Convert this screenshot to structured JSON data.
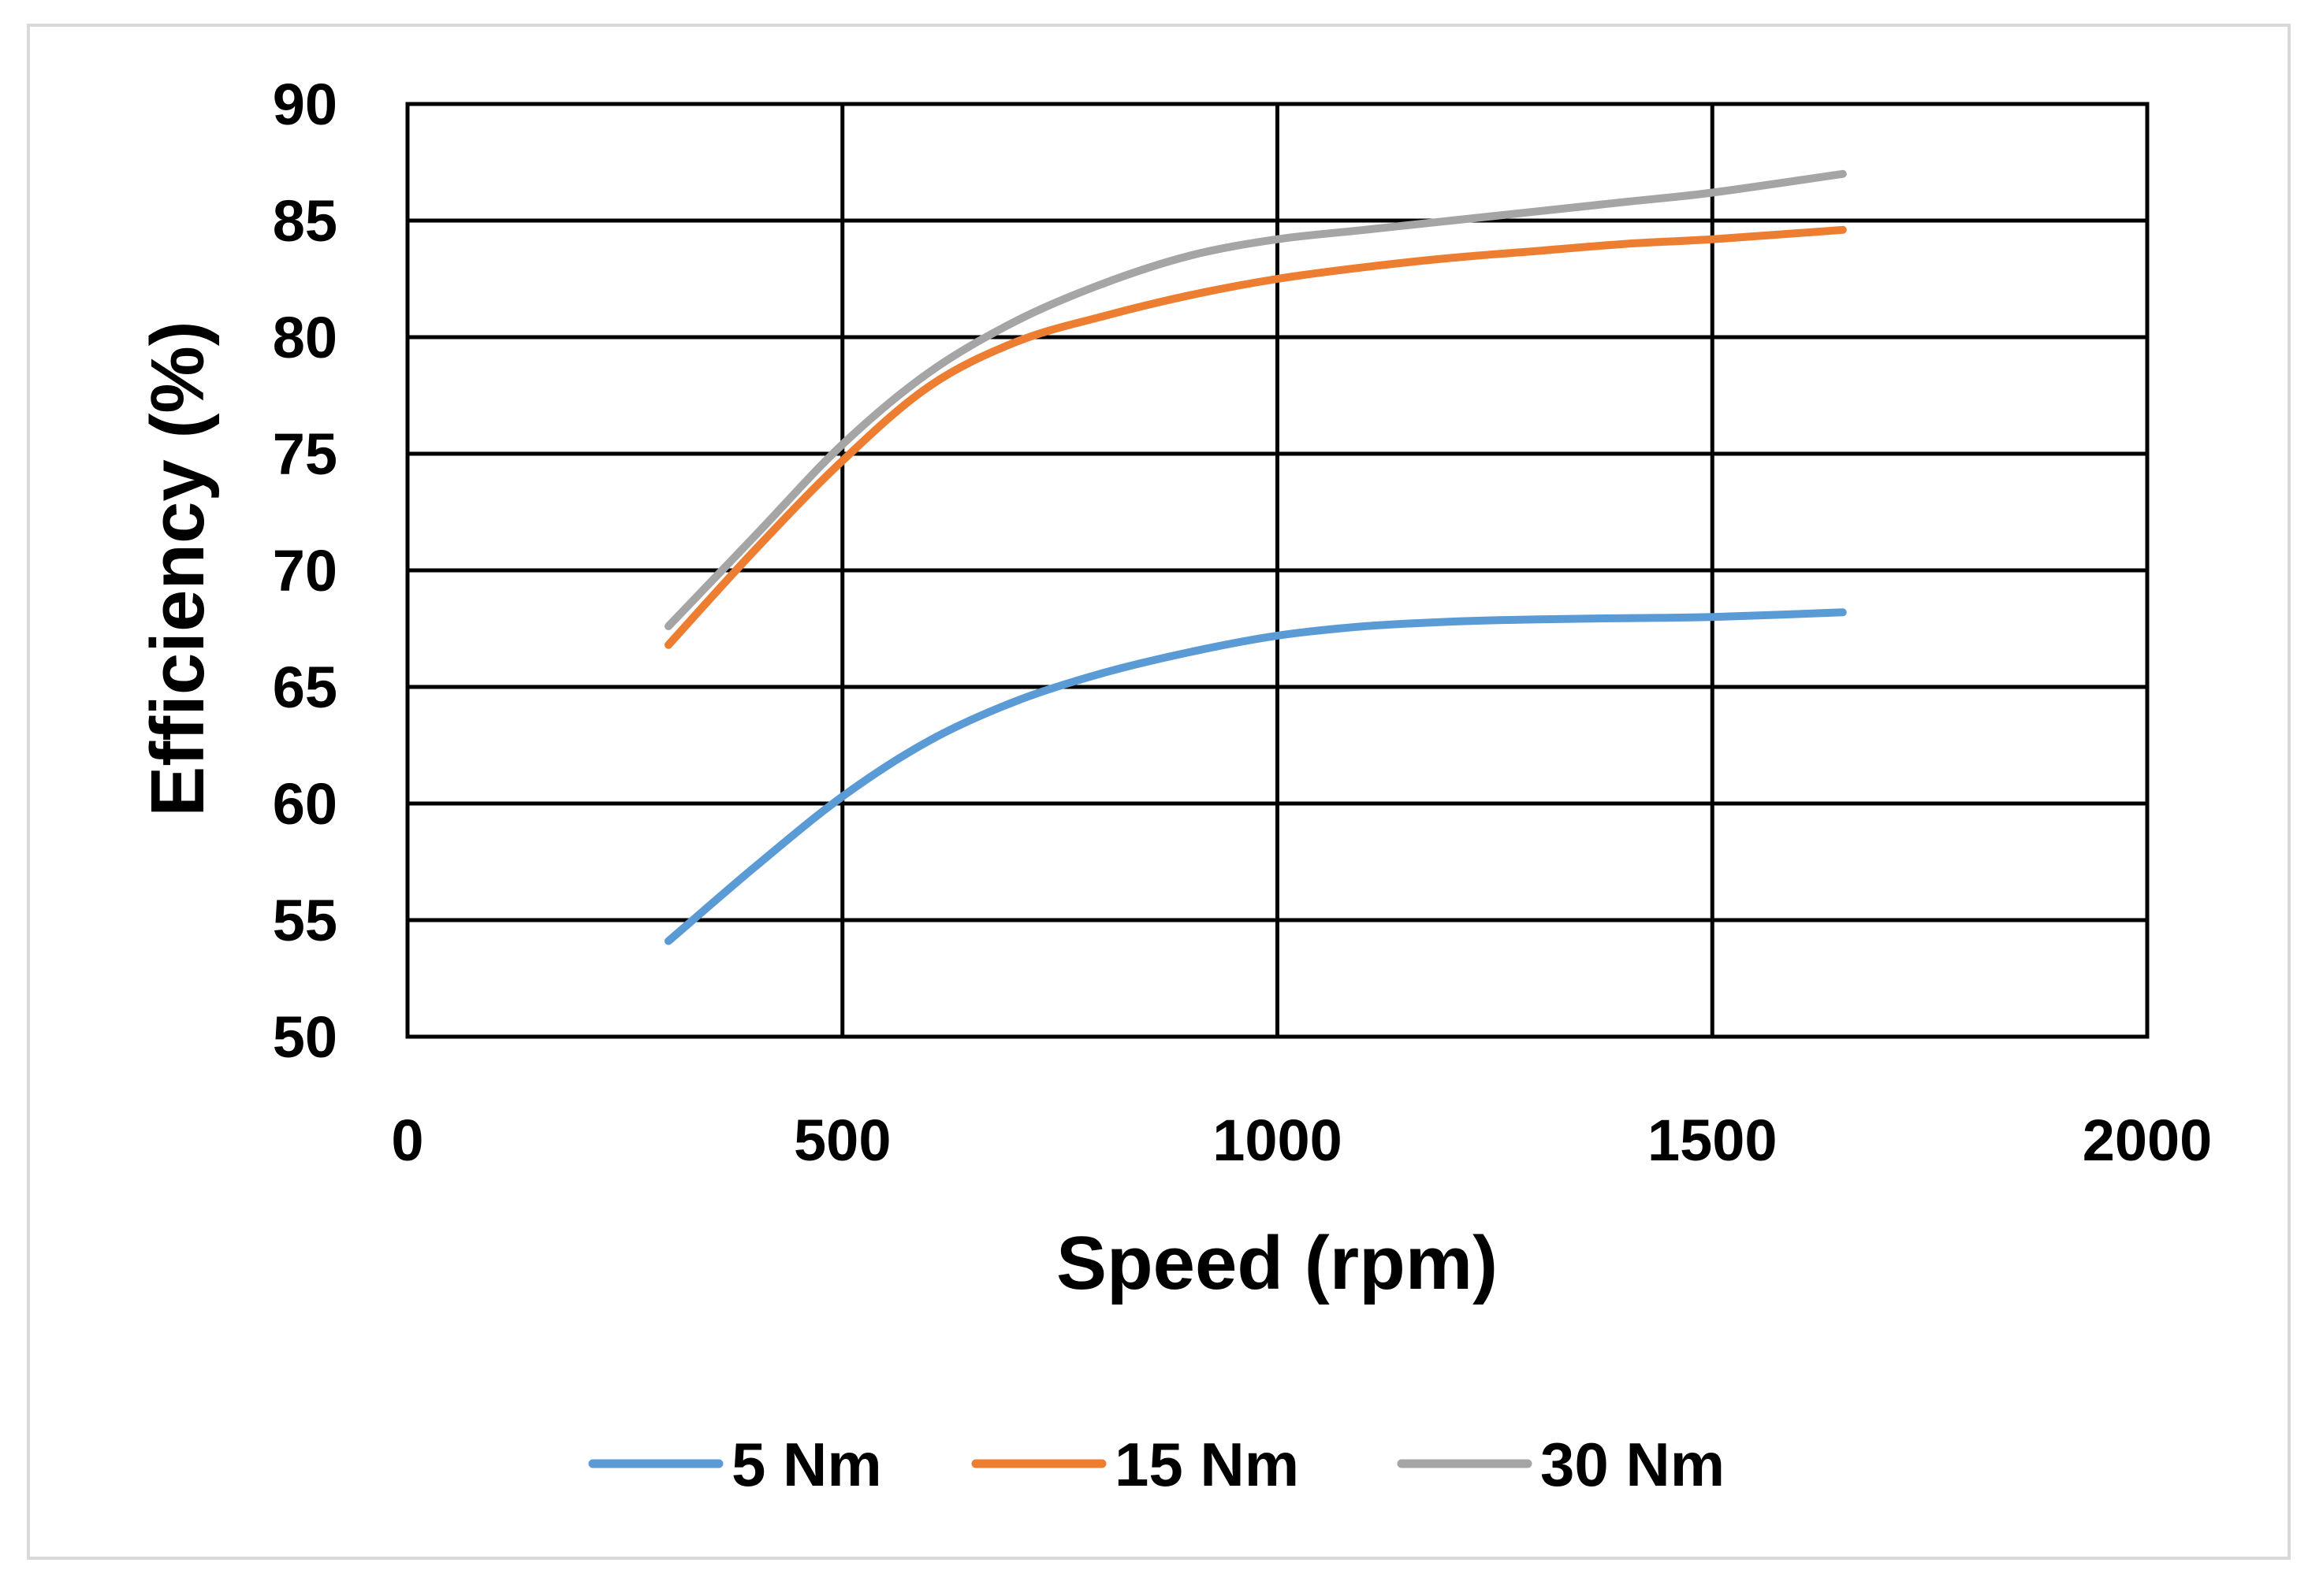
{
  "chart_data": {
    "type": "line",
    "title": "",
    "xlabel": "Speed (rpm)",
    "ylabel": "Efficiency (%)",
    "xlim": [
      0,
      2000
    ],
    "ylim": [
      50,
      90
    ],
    "xticks": [
      0,
      500,
      1000,
      1500,
      2000
    ],
    "yticks": [
      50,
      55,
      60,
      65,
      70,
      75,
      80,
      85,
      90
    ],
    "grid": true,
    "legend_position": "bottom",
    "series": [
      {
        "name": "5 Nm",
        "color": "#5b9bd5",
        "x": [
          300,
          400,
          500,
          600,
          700,
          800,
          900,
          1000,
          1100,
          1200,
          1300,
          1400,
          1500,
          1650
        ],
        "y": [
          54.1,
          57.3,
          60.3,
          62.7,
          64.4,
          65.6,
          66.5,
          67.2,
          67.6,
          67.8,
          67.9,
          67.95,
          68.0,
          68.2
        ]
      },
      {
        "name": "15 Nm",
        "color": "#ed7d31",
        "x": [
          300,
          400,
          500,
          600,
          700,
          800,
          900,
          1000,
          1100,
          1200,
          1300,
          1400,
          1500,
          1650
        ],
        "y": [
          66.8,
          70.9,
          74.7,
          77.9,
          79.8,
          80.9,
          81.8,
          82.5,
          83.0,
          83.4,
          83.7,
          84.0,
          84.2,
          84.6
        ]
      },
      {
        "name": "30 Nm",
        "color": "#a5a5a5",
        "x": [
          300,
          400,
          500,
          600,
          700,
          800,
          900,
          1000,
          1100,
          1200,
          1300,
          1400,
          1500,
          1650
        ],
        "y": [
          67.6,
          71.5,
          75.4,
          78.5,
          80.7,
          82.3,
          83.5,
          84.2,
          84.6,
          85.0,
          85.4,
          85.8,
          86.2,
          87.0
        ]
      }
    ]
  }
}
